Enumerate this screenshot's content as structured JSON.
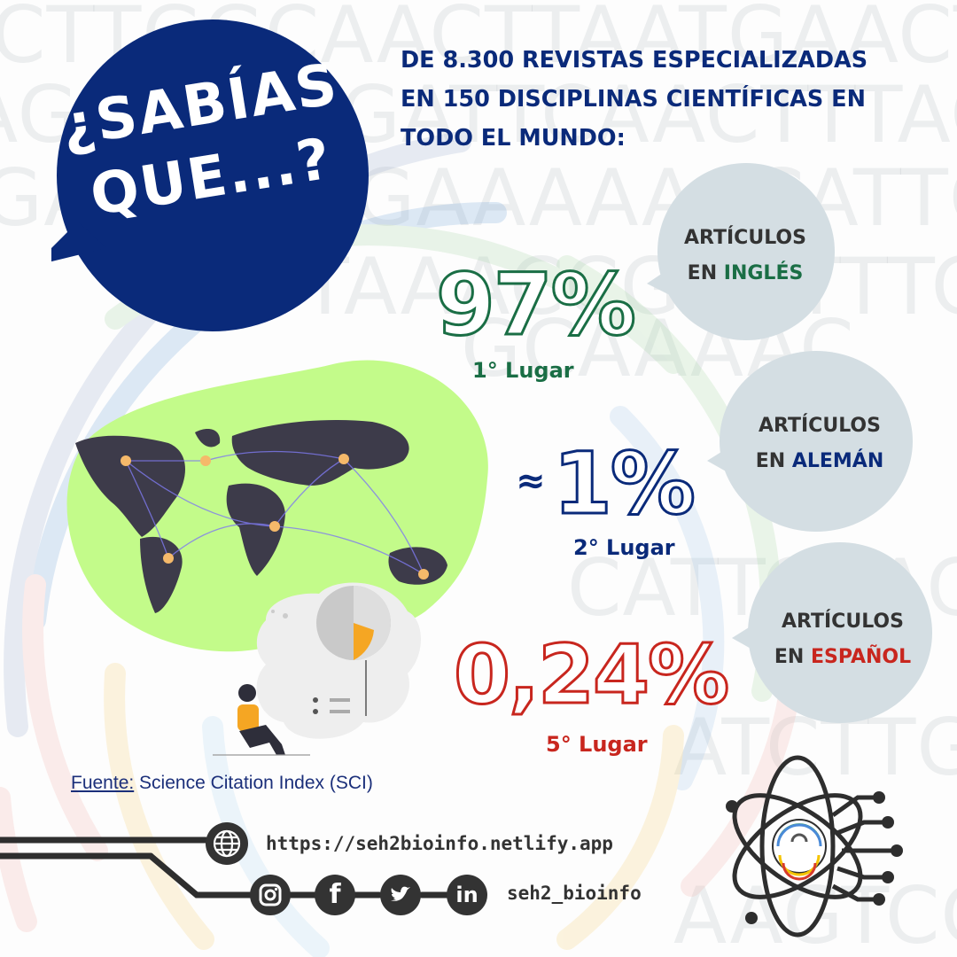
{
  "bubble": {
    "line1": "¿SABÍAS",
    "line2": "QUE...?"
  },
  "header": {
    "line1": "DE 8.300 REVISTAS ESPECIALIZADAS",
    "line2": "EN 150 DISCIPLINAS CIENTÍFICAS EN",
    "line3": "TODO EL MUNDO:"
  },
  "stats": [
    {
      "label1": "ARTÍCULOS",
      "prefix": "EN ",
      "language": "INGLÉS",
      "percent": "97%",
      "place": "1° Lugar",
      "color": "#1a6e45"
    },
    {
      "label1": "ARTÍCULOS",
      "prefix": "EN ",
      "language": "ALEMÁN",
      "approx": "≈",
      "percent": "1%",
      "place": "2° Lugar",
      "color": "#0a2a7a"
    },
    {
      "label1": "ARTÍCULOS",
      "prefix": "EN ",
      "language": "ESPAÑOL",
      "percent": "0,24%",
      "place": "5° Lugar",
      "color": "#c8261e"
    }
  ],
  "source": {
    "label": "Fuente:",
    "text": " Science Citation Index (SCI)"
  },
  "footer": {
    "url": "https://seh2bioinfo.netlify.app",
    "handle": "seh2_bioinfo"
  },
  "icons": {
    "globe": "globe-icon",
    "instagram": "instagram-icon",
    "facebook": "facebook-icon",
    "twitter": "twitter-icon",
    "linkedin": "linkedin-icon",
    "logo": "atom-fingerprint-logo"
  },
  "colors": {
    "navy": "#0a2a7a",
    "green": "#1a6e45",
    "red": "#c8261e",
    "lime": "#c3fb8a",
    "gray_circle": "#d4dee3",
    "dark": "#333333",
    "orange": "#f5a623"
  }
}
